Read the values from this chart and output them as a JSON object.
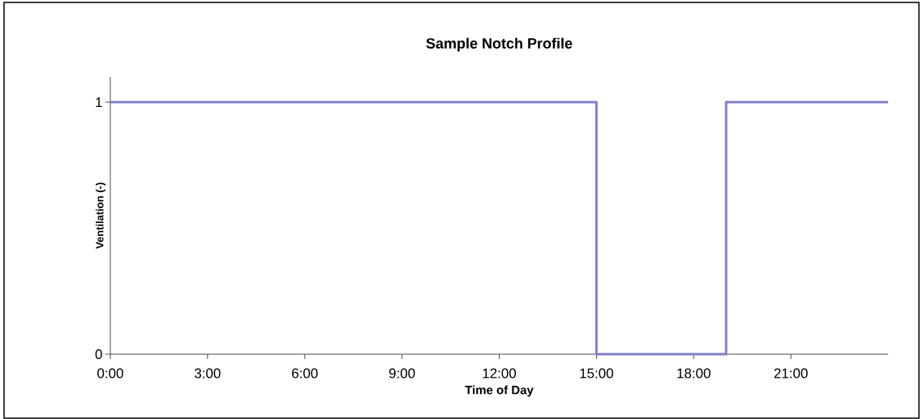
{
  "chart_data": {
    "type": "step",
    "title": "Sample Notch Profile",
    "xlabel": "Time of Day",
    "ylabel": "Ventilation (-)",
    "x": [
      0,
      15,
      19,
      24
    ],
    "values": [
      1,
      0,
      1,
      1
    ],
    "color": "#8080c8",
    "xlim": [
      0,
      24
    ],
    "ylim": [
      0,
      1.1
    ],
    "xticks": [
      {
        "value": 0,
        "label": "0:00"
      },
      {
        "value": 3,
        "label": "3:00"
      },
      {
        "value": 6,
        "label": "6:00"
      },
      {
        "value": 9,
        "label": "9:00"
      },
      {
        "value": 12,
        "label": "12:00"
      },
      {
        "value": 15,
        "label": "15:00"
      },
      {
        "value": 18,
        "label": "18:00"
      },
      {
        "value": 21,
        "label": "21:00"
      }
    ],
    "yticks": [
      0,
      1
    ]
  }
}
